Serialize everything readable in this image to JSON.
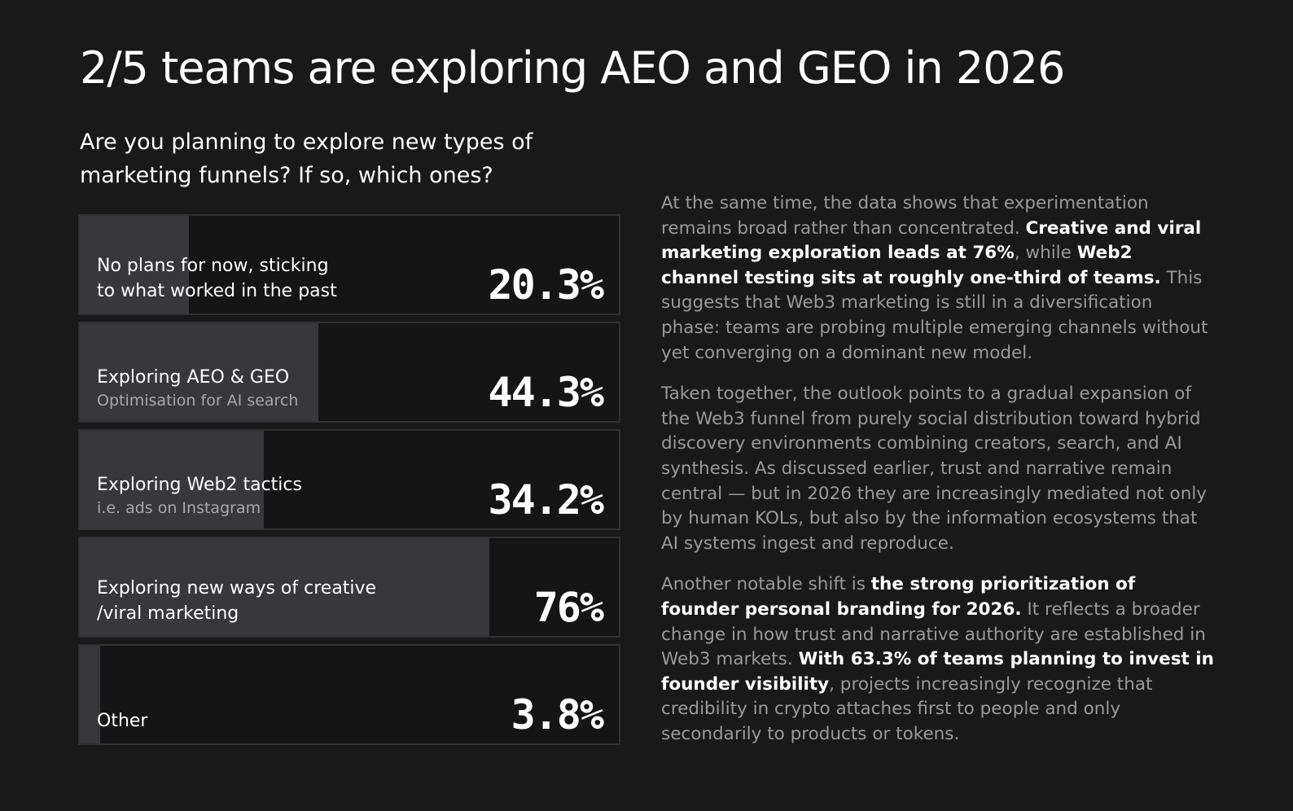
{
  "title": "2/5 teams are exploring AEO and GEO in 2026",
  "question": "Are you planning to explore new types of marketing funnels? If so, which ones?",
  "chart_data": {
    "type": "bar",
    "title": "Are you planning to explore new types of marketing funnels? If so, which ones?",
    "categories": [
      "No plans for now, sticking to what worked in the past",
      "Exploring AEO & GEO",
      "Exploring Web2 tactics",
      "Exploring new ways of creative /viral marketing",
      "Other"
    ],
    "values": [
      20.3,
      44.3,
      34.2,
      76,
      3.8
    ],
    "unit": "%",
    "bars": [
      {
        "label": "No plans for now, sticking\nto what worked in the past",
        "sublabel": "",
        "value": 20.3,
        "value_label": "20.3%"
      },
      {
        "label": "Exploring AEO & GEO",
        "sublabel": "Optimisation for AI search",
        "value": 44.3,
        "value_label": "44.3%"
      },
      {
        "label": "Exploring Web2 tactics",
        "sublabel": "i.e. ads on Instagram",
        "value": 34.2,
        "value_label": "34.2%"
      },
      {
        "label": "Exploring new ways of creative\n/viral marketing",
        "sublabel": "",
        "value": 76,
        "value_label": "76%"
      },
      {
        "label": "Other",
        "sublabel": "",
        "value": 3.8,
        "value_label": "3.8%"
      }
    ],
    "xlim": [
      0,
      100
    ],
    "colors": {
      "bar_fill": "#38373c",
      "bar_track": "#151515",
      "bar_border": "#303033"
    }
  },
  "paragraphs": [
    [
      {
        "text": "At the same time, the data shows that experimentation remains broad rather than concentrated. ",
        "bold": false
      },
      {
        "text": "Creative and viral marketing exploration leads at 76%",
        "bold": true
      },
      {
        "text": ", while ",
        "bold": false
      },
      {
        "text": "Web2 channel testing sits at roughly one-third of teams.",
        "bold": true
      },
      {
        "text": " This suggests that Web3 marketing is still in a diversification phase: teams are probing multiple emerging channels without yet converging on a dominant new model.",
        "bold": false
      }
    ],
    [
      {
        "text": "Taken together, the outlook points to a gradual expansion of the Web3 funnel from purely social distribution toward hybrid discovery environments combining creators, search, and AI synthesis. As discussed earlier, trust and narrative remain central — but in 2026 they are increasingly mediated not only by human KOLs, but also by the information ecosystems that AI systems ingest and reproduce.",
        "bold": false
      }
    ],
    [
      {
        "text": "Another notable shift is ",
        "bold": false
      },
      {
        "text": "the strong prioritization of founder personal branding for 2026.",
        "bold": true
      },
      {
        "text": " It reflects a broader change in how trust and narrative authority are established in Web3 markets. ",
        "bold": false
      },
      {
        "text": "With 63.3% of teams planning to invest in founder visibility",
        "bold": true
      },
      {
        "text": ", projects increasingly recognize that credibility in crypto attaches first to people and only secondarily to products or tokens.",
        "bold": false
      }
    ]
  ],
  "colors": {
    "background": "#191919",
    "text_primary": "#ffffff",
    "text_muted": "#9a9a9d"
  }
}
